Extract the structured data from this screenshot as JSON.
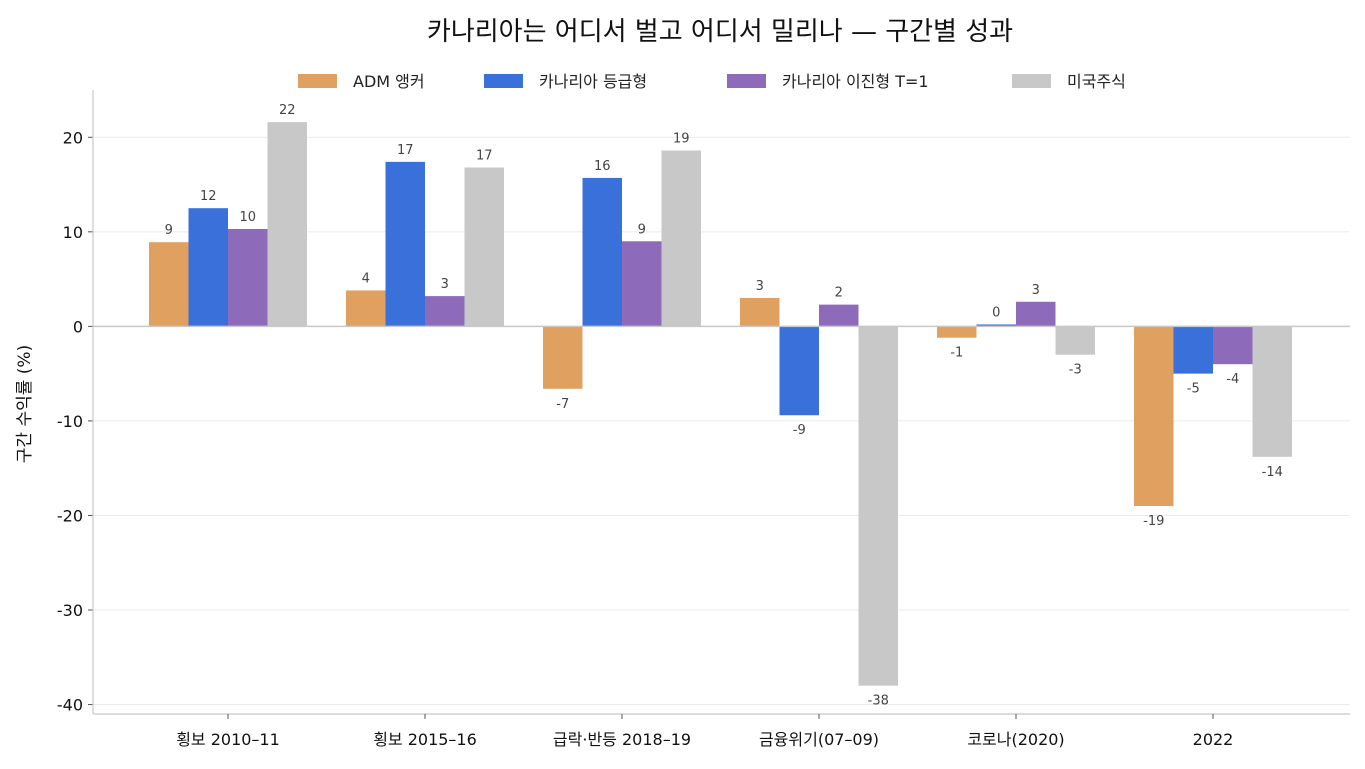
{
  "chart_data": {
    "type": "bar",
    "title": "카나리아는 어디서 벌고 어디서 밀리나 — 구간별 성과",
    "ylabel": "구간 수익률 (%)",
    "xlabel": "",
    "categories": [
      "횡보 2010–11",
      "횡보 2015–16",
      "급락·반등 2018–19",
      "금융위기(07–09)",
      "코로나(2020)",
      "2022"
    ],
    "ylim": [
      -41,
      25
    ],
    "yticks": [
      -40,
      -30,
      -20,
      -10,
      0,
      10,
      20
    ],
    "grid": true,
    "legend_position": "top-center",
    "series": [
      {
        "name": "ADM 앵커",
        "color": "#E0A060",
        "values": [
          8.9,
          3.8,
          -6.6,
          3.0,
          -1.2,
          -19.0
        ],
        "labels": [
          "9",
          "4",
          "-7",
          "3",
          "-1",
          "-19"
        ]
      },
      {
        "name": "카나리아 등급형",
        "color": "#3A70D9",
        "values": [
          12.5,
          17.4,
          15.7,
          -9.4,
          0.2,
          -5.0
        ],
        "labels": [
          "12",
          "17",
          "16",
          "-9",
          "0",
          "-5"
        ]
      },
      {
        "name": "카나리아 이진형 T=1",
        "color": "#8E6BBA",
        "values": [
          10.3,
          3.2,
          9.0,
          2.3,
          2.6,
          -4.0
        ],
        "labels": [
          "10",
          "3",
          "9",
          "2",
          "3",
          "-4"
        ]
      },
      {
        "name": "미국주식",
        "color": "#C8C8C8",
        "values": [
          21.6,
          16.8,
          18.6,
          -38.0,
          -3.0,
          -13.8
        ],
        "labels": [
          "22",
          "17",
          "19",
          "-38",
          "-3",
          "-14"
        ]
      }
    ]
  }
}
